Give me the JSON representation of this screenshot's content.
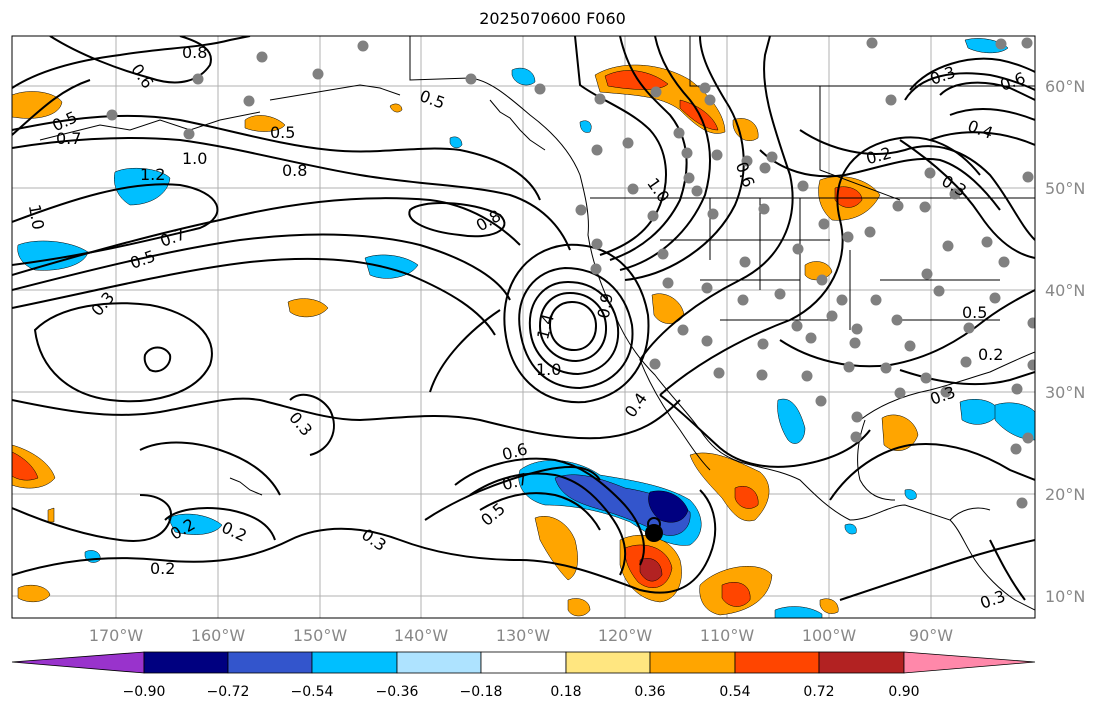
{
  "title": "2025070600 F060",
  "latitude_labels": [
    "60°N",
    "50°N",
    "40°N",
    "30°N",
    "20°N",
    "10°N"
  ],
  "longitude_labels": [
    "170°W",
    "160°W",
    "150°W",
    "140°W",
    "130°W",
    "120°W",
    "110°W",
    "100°W",
    "90°W"
  ],
  "colorbar": {
    "tick_labels": [
      "−0.90",
      "−0.72",
      "−0.54",
      "−0.36",
      "−0.18",
      "0.18",
      "0.36",
      "0.54",
      "0.72",
      "0.90"
    ],
    "colors": [
      "#9933cc",
      "#000080",
      "#3355cc",
      "#00bfff",
      "#aee3ff",
      "#ffffff",
      "#ffe680",
      "#ffa500",
      "#ff4500",
      "#b22222",
      "#ff88aa"
    ]
  },
  "contour_labels": [
    "0.8",
    "0.6",
    "0.5",
    "0.7",
    "0.5",
    "1.0",
    "1.2",
    "0.8",
    "1.0",
    "0.7",
    "0.5",
    "0.3",
    "0.8",
    "1.4",
    "1.0",
    "0.9",
    "1.0",
    "0.4",
    "0.6",
    "0.7",
    "0.5",
    "0.3",
    "0.2",
    "0.2",
    "0.2",
    "0.3",
    "0.3",
    "0.6",
    "0.3",
    "0.5",
    "0.4",
    "0.2",
    "0.6",
    "0.3",
    "0.5",
    "0.2",
    "0.3"
  ]
}
